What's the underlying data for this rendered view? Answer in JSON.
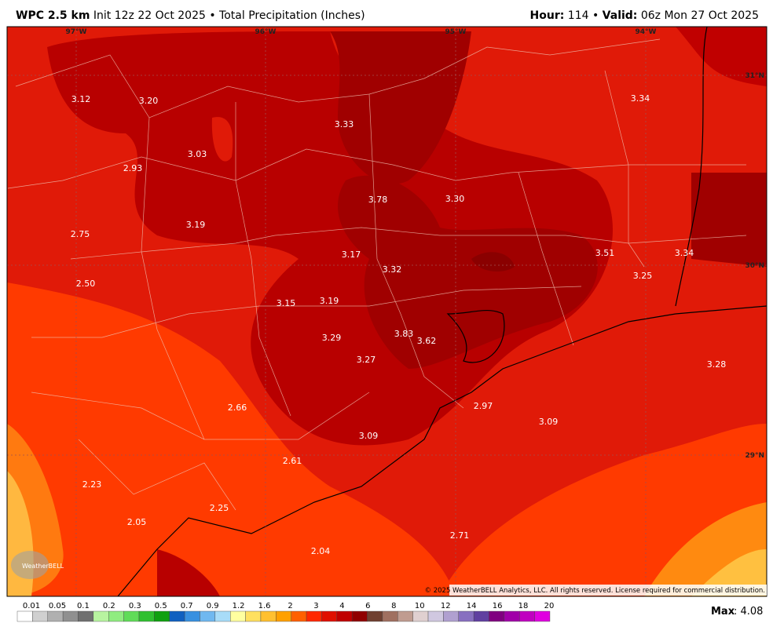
{
  "header": {
    "model": "WPC 2.5 km",
    "init": "Init 12z 22 Oct 2025 • Total Precipitation (Inches)",
    "hour_label": "Hour:",
    "hour": "114 •",
    "valid_label": "Valid:",
    "valid": "06z Mon 27 Oct 2025"
  },
  "longitudes": [
    "97°W",
    "96°W",
    "95°W",
    "94°W"
  ],
  "latitudes": [
    "31°N",
    "30°N",
    "29°N"
  ],
  "points": [
    "3.12",
    "3.20",
    "3.33",
    "3.34",
    "3.03",
    "2.93",
    "3.78",
    "3.30",
    "3.19",
    "2.75",
    "3.17",
    "3.32",
    "3.51",
    "3.34",
    "3.25",
    "2.50",
    "3.15",
    "3.19",
    "3.83",
    "3.62",
    "3.29",
    "3.27",
    "3.28",
    "2.66",
    "2.97",
    "3.09",
    "3.09",
    "2.61",
    "2.23",
    "2.25",
    "2.05",
    "2.71",
    "2.04"
  ],
  "copyright": "© 2025 WeatherBELL Analytics, LLC. All rights reserved. License required for commercial distribution.",
  "logo": "WeatherBELL",
  "colorbar": {
    "labels": [
      "0.01",
      "0.05",
      "0.1",
      "0.2",
      "0.3",
      "0.5",
      "0.7",
      "0.9",
      "1.2",
      "1.6",
      "2",
      "3",
      "4",
      "6",
      "8",
      "10",
      "12",
      "14",
      "16",
      "18",
      "20"
    ],
    "colors": [
      "#ffffff",
      "#d0d0d0",
      "#b0b0b0",
      "#909090",
      "#707070",
      "#b8f4a0",
      "#90ec80",
      "#60dc58",
      "#30c030",
      "#10a010",
      "#1060c0",
      "#3890e0",
      "#70b8f0",
      "#a8dcf8",
      "#ffffa0",
      "#ffe060",
      "#ffc030",
      "#ffa000",
      "#ff6000",
      "#ff2800",
      "#e01000",
      "#c00000",
      "#900000",
      "#704030",
      "#a07060",
      "#c09c90",
      "#e0d0d0",
      "#d0c8e0",
      "#b0a0d0",
      "#8870c0",
      "#6040a0",
      "#800080",
      "#a000a8",
      "#c000c0",
      "#e000e0"
    ]
  },
  "max": {
    "label": "Max",
    "value": ": 4.08"
  }
}
